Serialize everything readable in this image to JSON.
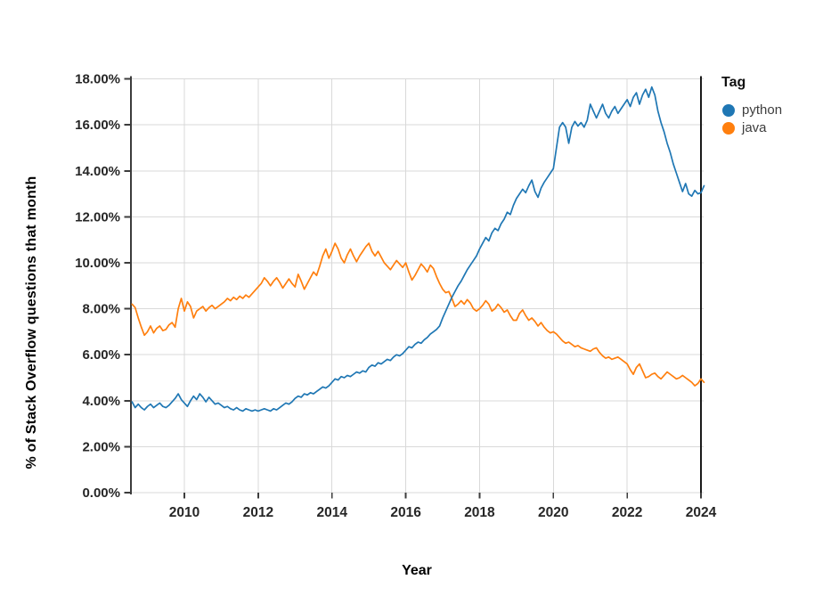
{
  "chart_data": {
    "type": "line",
    "title": "",
    "x_axis": {
      "label": "Year",
      "range": [
        2008.55,
        2024.08
      ],
      "ticks": [
        2010,
        2012,
        2014,
        2016,
        2018,
        2020,
        2022,
        2024
      ],
      "tick_labels": [
        "2010",
        "2012",
        "2014",
        "2016",
        "2018",
        "2020",
        "2022",
        "2024"
      ]
    },
    "y_axis": {
      "label": "% of Stack Overflow questions that month",
      "range": [
        0,
        18
      ],
      "ticks": [
        0,
        2,
        4,
        6,
        8,
        10,
        12,
        14,
        16,
        18
      ],
      "tick_labels": [
        "0.00%",
        "2.00%",
        "4.00%",
        "6.00%",
        "8.00%",
        "10.00%",
        "12.00%",
        "14.00%",
        "16.00%",
        "18.00%"
      ]
    },
    "legend": {
      "title": "Tag",
      "position": "right"
    },
    "grid": true,
    "series": [
      {
        "name": "python",
        "color": "#1f77b4",
        "frequency": "monthly",
        "start_year": 2008,
        "start_month": 8,
        "values": [
          3.95,
          3.7,
          3.85,
          3.7,
          3.6,
          3.75,
          3.85,
          3.7,
          3.8,
          3.9,
          3.75,
          3.7,
          3.8,
          3.95,
          4.1,
          4.3,
          4.05,
          3.9,
          3.75,
          4.0,
          4.2,
          4.05,
          4.3,
          4.15,
          3.95,
          4.15,
          4.0,
          3.85,
          3.9,
          3.8,
          3.7,
          3.75,
          3.65,
          3.6,
          3.7,
          3.6,
          3.55,
          3.65,
          3.6,
          3.55,
          3.6,
          3.55,
          3.6,
          3.65,
          3.6,
          3.55,
          3.65,
          3.6,
          3.7,
          3.8,
          3.9,
          3.85,
          3.95,
          4.1,
          4.2,
          4.15,
          4.3,
          4.25,
          4.35,
          4.3,
          4.4,
          4.5,
          4.6,
          4.55,
          4.65,
          4.8,
          4.95,
          4.9,
          5.05,
          5.0,
          5.1,
          5.05,
          5.15,
          5.25,
          5.2,
          5.3,
          5.25,
          5.45,
          5.55,
          5.5,
          5.65,
          5.6,
          5.7,
          5.8,
          5.75,
          5.9,
          6.0,
          5.95,
          6.05,
          6.2,
          6.35,
          6.3,
          6.45,
          6.55,
          6.5,
          6.65,
          6.75,
          6.9,
          7.0,
          7.1,
          7.25,
          7.6,
          7.9,
          8.2,
          8.5,
          8.75,
          9.0,
          9.2,
          9.45,
          9.7,
          9.9,
          10.1,
          10.3,
          10.6,
          10.85,
          11.1,
          10.95,
          11.3,
          11.5,
          11.4,
          11.7,
          11.9,
          12.2,
          12.1,
          12.5,
          12.8,
          13.0,
          13.2,
          13.05,
          13.35,
          13.6,
          13.1,
          12.85,
          13.25,
          13.5,
          13.7,
          13.9,
          14.1,
          15.0,
          15.9,
          16.1,
          15.9,
          15.2,
          15.9,
          16.15,
          15.95,
          16.1,
          15.9,
          16.2,
          16.9,
          16.6,
          16.3,
          16.6,
          16.9,
          16.5,
          16.3,
          16.6,
          16.8,
          16.5,
          16.7,
          16.9,
          17.1,
          16.8,
          17.2,
          17.4,
          16.9,
          17.3,
          17.55,
          17.2,
          17.65,
          17.3,
          16.6,
          16.1,
          15.7,
          15.2,
          14.8,
          14.3,
          13.9,
          13.5,
          13.1,
          13.45,
          13.0,
          12.9,
          13.15,
          13.0,
          13.05,
          13.35
        ]
      },
      {
        "name": "java",
        "color": "#ff7f0e",
        "frequency": "monthly",
        "start_year": 2008,
        "start_month": 8,
        "values": [
          8.2,
          8.05,
          7.6,
          7.2,
          6.85,
          7.0,
          7.25,
          6.95,
          7.15,
          7.25,
          7.05,
          7.1,
          7.3,
          7.4,
          7.2,
          8.0,
          8.45,
          7.9,
          8.3,
          8.1,
          7.6,
          7.9,
          8.0,
          8.1,
          7.9,
          8.05,
          8.15,
          8.0,
          8.1,
          8.2,
          8.3,
          8.45,
          8.35,
          8.5,
          8.4,
          8.55,
          8.45,
          8.6,
          8.5,
          8.65,
          8.8,
          8.95,
          9.1,
          9.35,
          9.2,
          9.0,
          9.2,
          9.35,
          9.15,
          8.9,
          9.1,
          9.3,
          9.1,
          8.95,
          9.5,
          9.2,
          8.85,
          9.1,
          9.35,
          9.6,
          9.45,
          9.85,
          10.3,
          10.6,
          10.2,
          10.5,
          10.85,
          10.6,
          10.2,
          10.0,
          10.35,
          10.6,
          10.3,
          10.05,
          10.3,
          10.5,
          10.7,
          10.85,
          10.5,
          10.3,
          10.5,
          10.25,
          10.0,
          9.85,
          9.7,
          9.9,
          10.1,
          9.95,
          9.8,
          10.0,
          9.6,
          9.25,
          9.45,
          9.7,
          9.95,
          9.8,
          9.6,
          9.9,
          9.75,
          9.4,
          9.1,
          8.85,
          8.7,
          8.75,
          8.45,
          8.1,
          8.2,
          8.35,
          8.2,
          8.4,
          8.25,
          8.0,
          7.9,
          8.0,
          8.15,
          8.35,
          8.2,
          7.9,
          8.0,
          8.2,
          8.05,
          7.85,
          7.95,
          7.7,
          7.5,
          7.5,
          7.8,
          7.95,
          7.7,
          7.5,
          7.6,
          7.45,
          7.25,
          7.4,
          7.2,
          7.05,
          6.95,
          7.0,
          6.9,
          6.75,
          6.6,
          6.5,
          6.55,
          6.45,
          6.35,
          6.4,
          6.3,
          6.25,
          6.2,
          6.15,
          6.25,
          6.3,
          6.1,
          5.95,
          5.85,
          5.9,
          5.8,
          5.85,
          5.9,
          5.8,
          5.7,
          5.6,
          5.35,
          5.15,
          5.45,
          5.6,
          5.3,
          5.0,
          5.05,
          5.15,
          5.2,
          5.05,
          4.95,
          5.1,
          5.25,
          5.15,
          5.05,
          4.95,
          5.0,
          5.1,
          5.0,
          4.9,
          4.8,
          4.65,
          4.75,
          4.95,
          4.8
        ]
      }
    ],
    "style": {
      "grid_color": "#d9d9d9",
      "axis_color": "#3c3c3c",
      "right_border_color": "#1a1a1a",
      "tick_label_color": "#262626",
      "background": "#ffffff"
    }
  }
}
